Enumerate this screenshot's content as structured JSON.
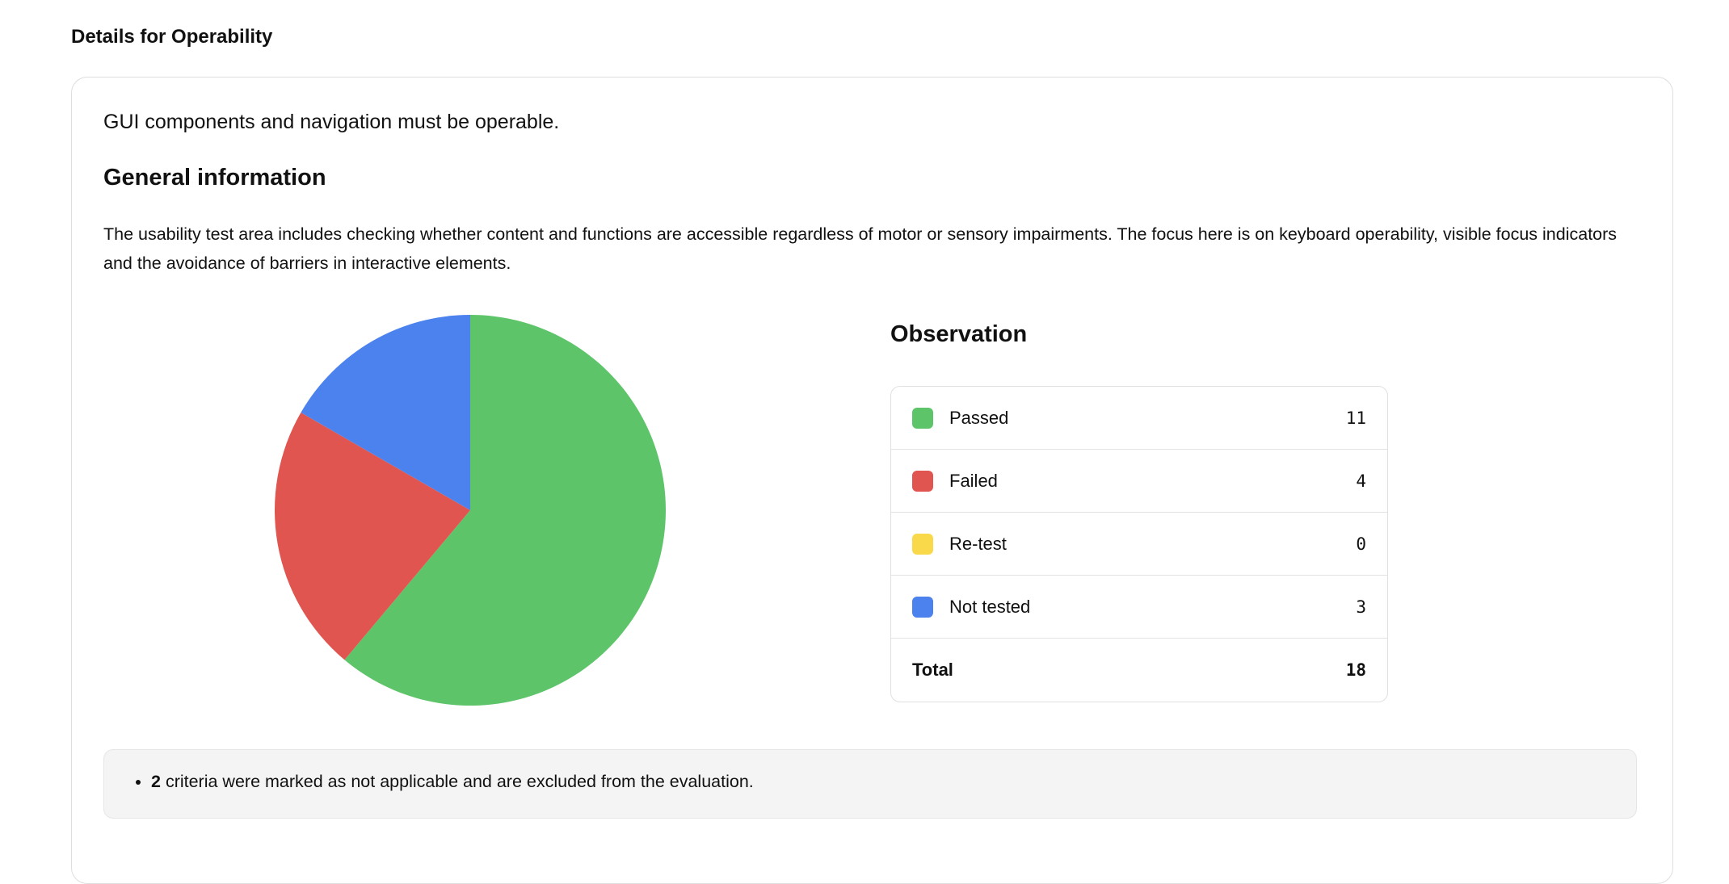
{
  "section": {
    "title": "Details for Operability"
  },
  "card": {
    "lead": "GUI components and navigation must be operable.",
    "general_title": "General information",
    "description": "The usability test area includes checking whether content and functions are accessible regardless of motor or sensory impairments. The focus here is on keyboard operability, visible focus indicators and the avoidance of barriers in interactive elements.",
    "observation_title": "Observation",
    "note": {
      "count": "2",
      "text": " criteria were marked as not applicable and are excluded from the evaluation."
    }
  },
  "chart_data": {
    "type": "pie",
    "start": "top",
    "direction": "clockwise",
    "categories": [
      "Passed",
      "Failed",
      "Re-test",
      "Not tested"
    ],
    "values": [
      11,
      4,
      0,
      3
    ],
    "colors": [
      "#5ec46a",
      "#e0554f",
      "#f9d94a",
      "#4c82ee"
    ],
    "total_label": "Total",
    "total": 18
  }
}
